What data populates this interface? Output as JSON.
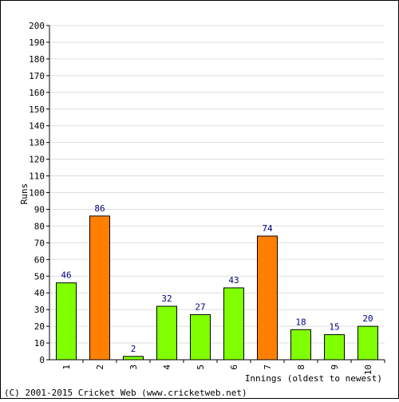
{
  "chart_data": {
    "type": "bar",
    "categories": [
      "1",
      "2",
      "3",
      "4",
      "5",
      "6",
      "7",
      "8",
      "9",
      "10"
    ],
    "values": [
      46,
      86,
      2,
      32,
      27,
      43,
      74,
      18,
      15,
      20
    ],
    "ylabel": "Runs",
    "xlabel": "Innings (oldest to newest)",
    "ylim": [
      0,
      200
    ],
    "ytick_step": 10,
    "grid": true,
    "colors": {
      "normal": "#80ff00",
      "highlight": "#ff8000",
      "grid": "#dddddd",
      "label": "#000080"
    },
    "highlight_indices": [
      1,
      6
    ]
  },
  "footer": "(C) 2001-2015 Cricket Web (www.cricketweb.net)"
}
